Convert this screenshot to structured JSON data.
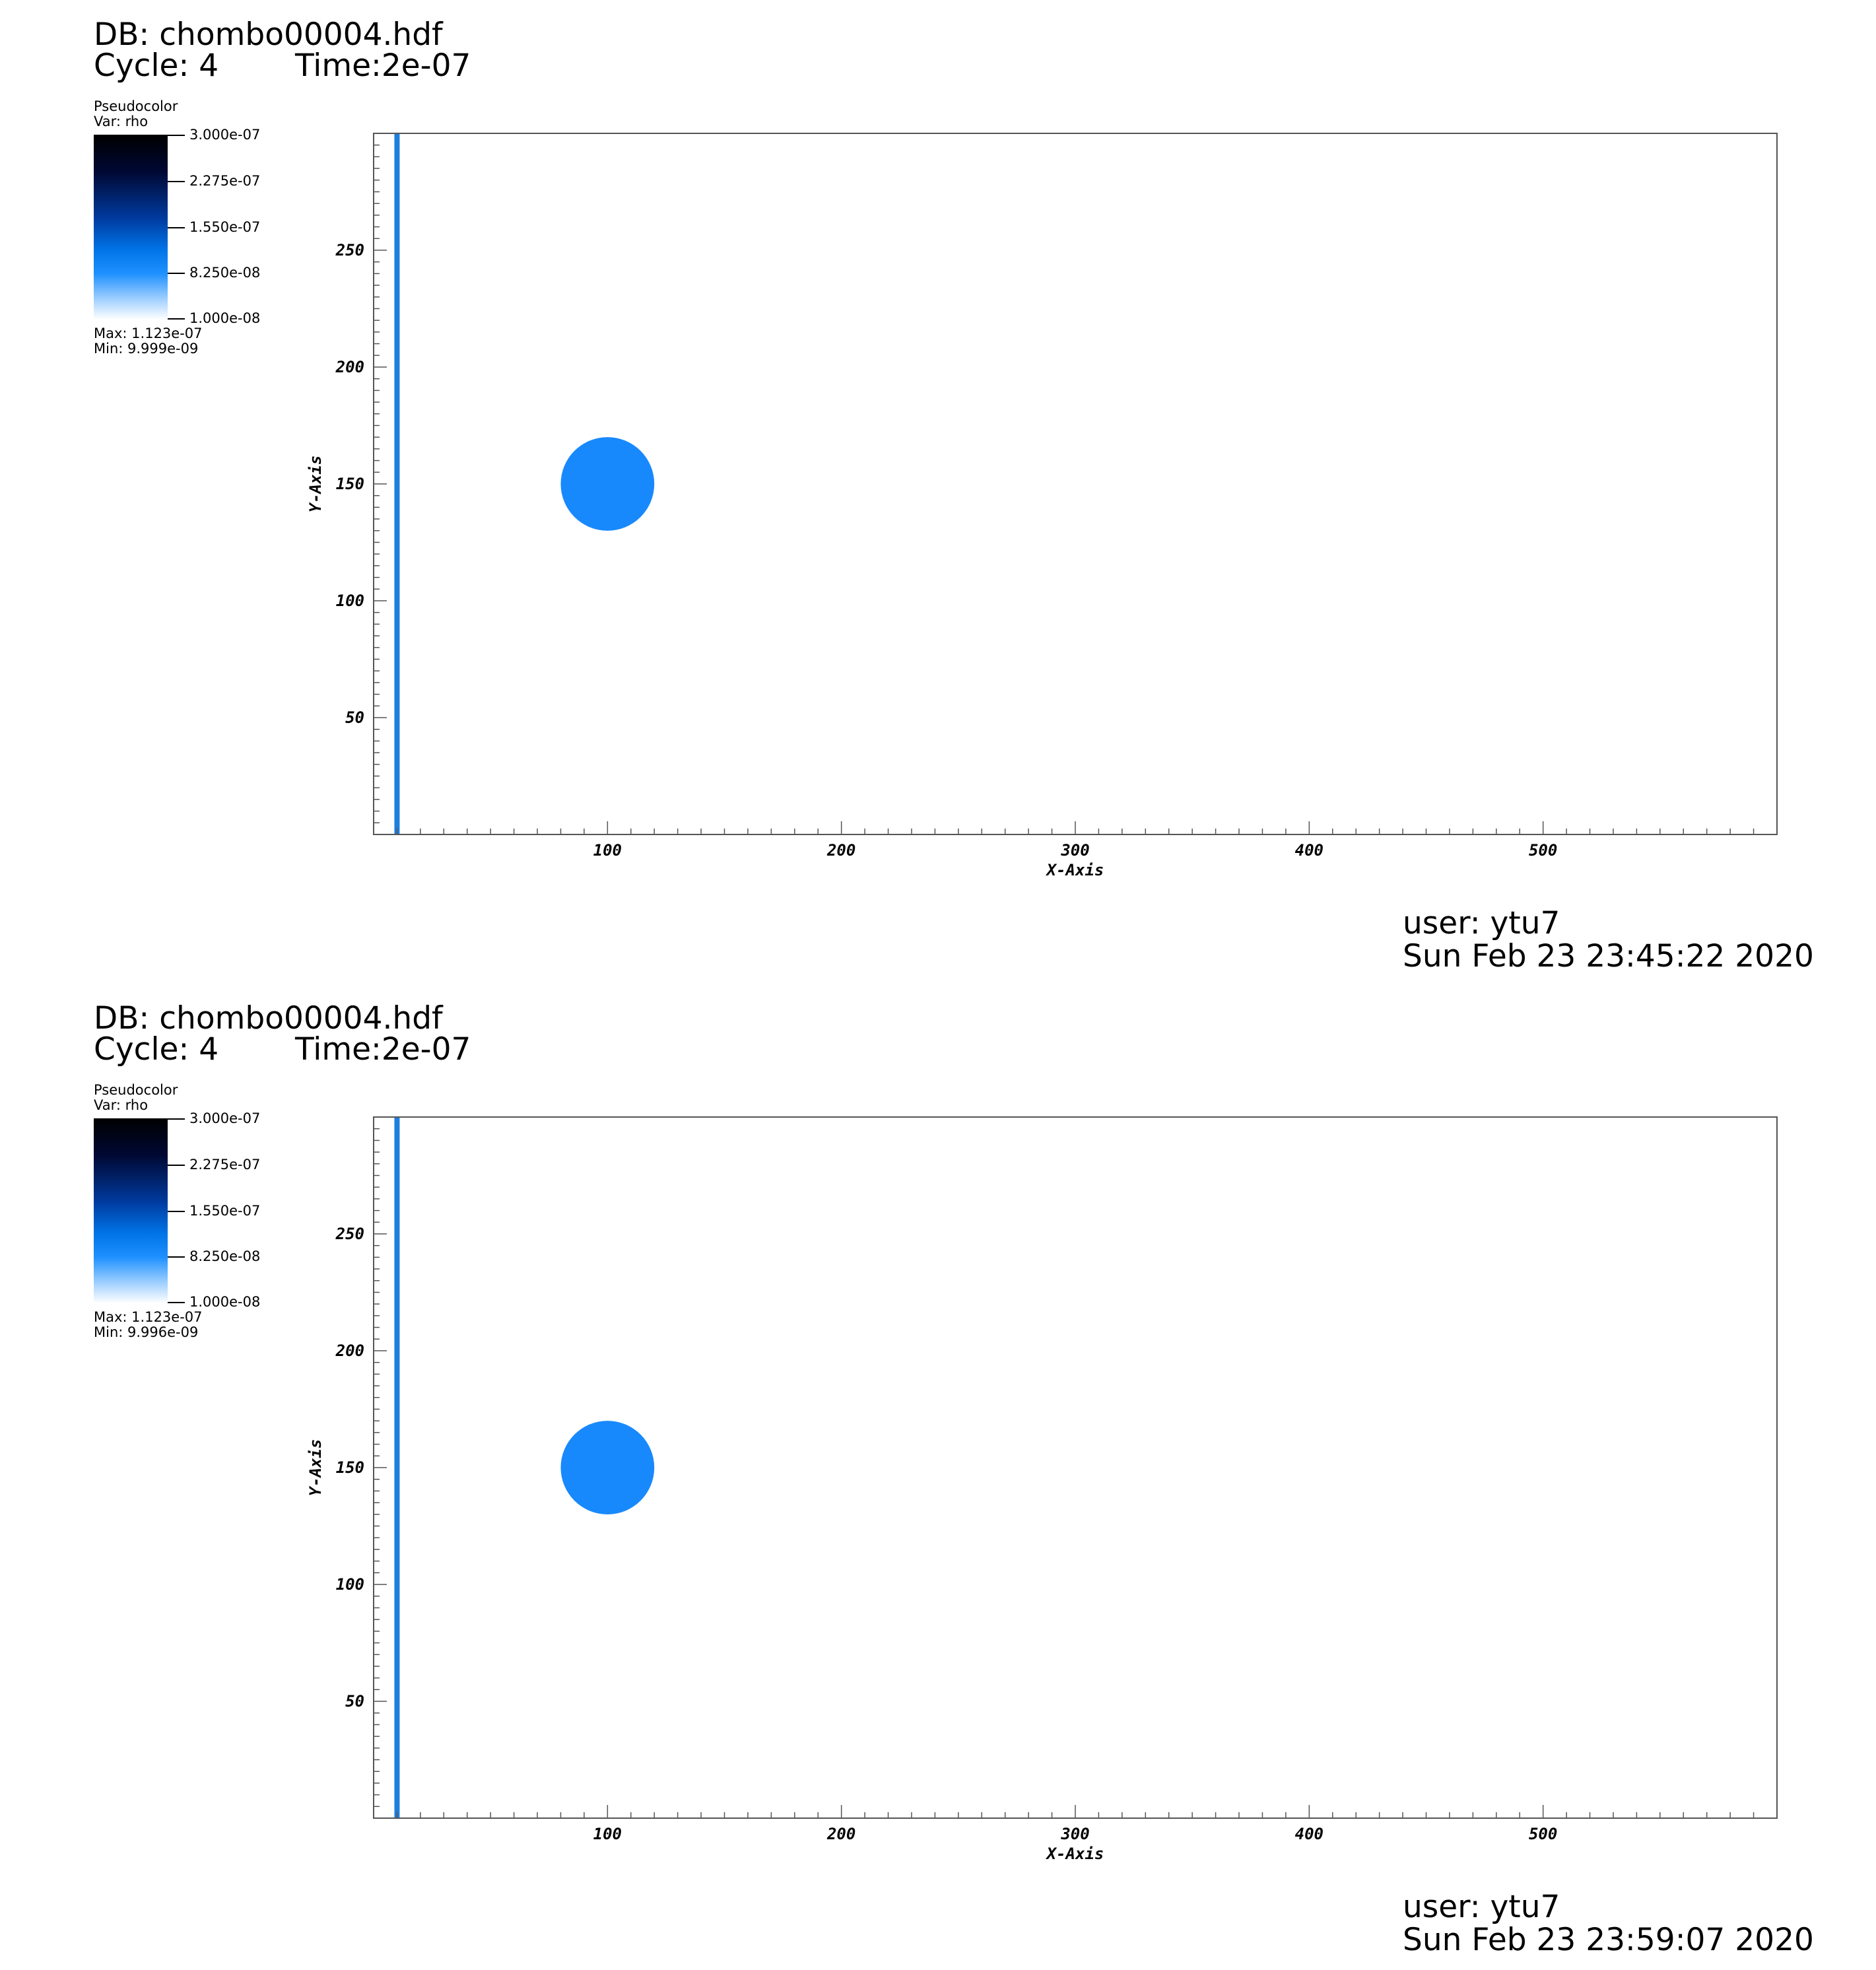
{
  "panels": [
    {
      "db_label": "DB: chombo00004.hdf",
      "cycle_label": "Cycle: 4",
      "time_label": "Time:2e-07",
      "legend": {
        "plot_type": "Pseudocolor",
        "var_label": "Var: rho",
        "ticks": [
          "3.000e-07",
          "2.275e-07",
          "1.550e-07",
          "8.250e-08",
          "1.000e-08"
        ],
        "max_label": "Max:  1.123e-07",
        "min_label": "Min:  9.999e-09"
      },
      "user_label": "user: ytu7",
      "date_label": "Sun Feb 23 23:45:22 2020"
    },
    {
      "db_label": "DB: chombo00004.hdf",
      "cycle_label": "Cycle: 4",
      "time_label": "Time:2e-07",
      "legend": {
        "plot_type": "Pseudocolor",
        "var_label": "Var: rho",
        "ticks": [
          "3.000e-07",
          "2.275e-07",
          "1.550e-07",
          "8.250e-08",
          "1.000e-08"
        ],
        "max_label": "Max:  1.123e-07",
        "min_label": "Min:  9.996e-09"
      },
      "user_label": "user: ytu7",
      "date_label": "Sun Feb 23 23:59:07 2020"
    }
  ],
  "chart_data": [
    {
      "type": "heatmap",
      "xlabel": "X-Axis",
      "ylabel": "Y-Axis",
      "xlim": [
        0,
        600
      ],
      "ylim": [
        0,
        300
      ],
      "xticks": [
        100,
        200,
        300,
        400,
        500
      ],
      "yticks": [
        50,
        100,
        150,
        200,
        250
      ],
      "features": [
        {
          "shape": "vertical-line",
          "x": 10,
          "color": "#1e7fdc"
        },
        {
          "shape": "circle",
          "cx": 100,
          "cy": 150,
          "r": 20,
          "color": "#1889fc"
        }
      ]
    },
    {
      "type": "heatmap",
      "xlabel": "X-Axis",
      "ylabel": "Y-Axis",
      "xlim": [
        0,
        600
      ],
      "ylim": [
        0,
        300
      ],
      "xticks": [
        100,
        200,
        300,
        400,
        500
      ],
      "yticks": [
        50,
        100,
        150,
        200,
        250
      ],
      "features": [
        {
          "shape": "vertical-line",
          "x": 10,
          "color": "#1e7fdc"
        },
        {
          "shape": "circle",
          "cx": 100,
          "cy": 150,
          "r": 20,
          "color": "#1889fc"
        }
      ]
    }
  ]
}
